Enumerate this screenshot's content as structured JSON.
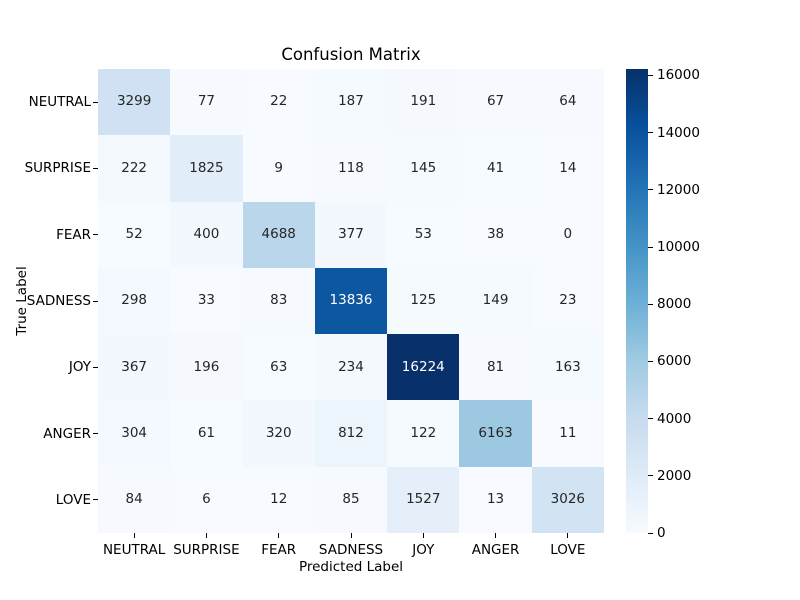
{
  "chart_data": {
    "type": "heatmap",
    "title": "Confusion Matrix",
    "xlabel": "Predicted Label",
    "ylabel": "True Label",
    "x_categories": [
      "NEUTRAL",
      "SURPRISE",
      "FEAR",
      "SADNESS",
      "JOY",
      "ANGER",
      "LOVE"
    ],
    "y_categories": [
      "NEUTRAL",
      "SURPRISE",
      "FEAR",
      "SADNESS",
      "JOY",
      "ANGER",
      "LOVE"
    ],
    "values": [
      [
        3299,
        77,
        22,
        187,
        191,
        67,
        64
      ],
      [
        222,
        1825,
        9,
        118,
        145,
        41,
        14
      ],
      [
        52,
        400,
        4688,
        377,
        53,
        38,
        0
      ],
      [
        298,
        33,
        83,
        13836,
        125,
        149,
        23
      ],
      [
        367,
        196,
        63,
        234,
        16224,
        81,
        163
      ],
      [
        304,
        61,
        320,
        812,
        122,
        6163,
        11
      ],
      [
        84,
        6,
        12,
        85,
        1527,
        13,
        3026
      ]
    ],
    "vmin": 0,
    "vmax": 16224,
    "grid": false,
    "legend_position": "colorbar-right",
    "colorbar_ticks": [
      0,
      2000,
      4000,
      6000,
      8000,
      10000,
      12000,
      14000,
      16000
    ],
    "colormap": {
      "name": "Blues",
      "anchors": [
        {
          "pos": 0.0,
          "color": "#f7fbff"
        },
        {
          "pos": 0.125,
          "color": "#deebf7"
        },
        {
          "pos": 0.25,
          "color": "#c6dbef"
        },
        {
          "pos": 0.375,
          "color": "#9ecae1"
        },
        {
          "pos": 0.5,
          "color": "#6baed6"
        },
        {
          "pos": 0.625,
          "color": "#4292c6"
        },
        {
          "pos": 0.75,
          "color": "#2171b5"
        },
        {
          "pos": 0.875,
          "color": "#08519c"
        },
        {
          "pos": 1.0,
          "color": "#08306b"
        }
      ]
    },
    "colors": {
      "annotation_dark": "#262626",
      "annotation_light": "#ffffff",
      "tick": "#000000",
      "background": "#ffffff"
    }
  }
}
